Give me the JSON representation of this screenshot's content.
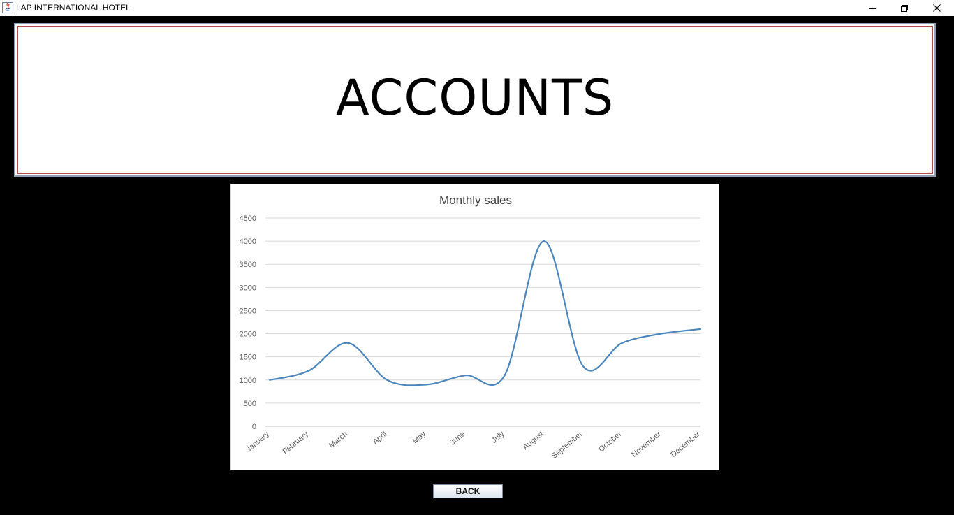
{
  "window": {
    "title": "LAP INTERNATIONAL HOTEL",
    "icon": "java-app-icon",
    "controls": [
      "minimize-icon",
      "restore-icon",
      "close-icon"
    ]
  },
  "header": {
    "title": "ACCOUNTS"
  },
  "chart_data": {
    "type": "line",
    "title": "Monthly sales",
    "categories": [
      "January",
      "February",
      "March",
      "April",
      "May",
      "June",
      "July",
      "August",
      "September",
      "October",
      "November",
      "December"
    ],
    "series": [
      {
        "values": [
          1000,
          1200,
          1800,
          1000,
          900,
          1100,
          1100,
          4000,
          1300,
          1800,
          2000,
          2100
        ],
        "color": "#4a86bd"
      }
    ],
    "ylim": [
      0,
      4500
    ],
    "yticks": [
      0,
      500,
      1000,
      1500,
      2000,
      2500,
      3000,
      3500,
      4000,
      4500
    ],
    "grid": true,
    "smooth": true
  },
  "buttons": {
    "back": "BACK"
  }
}
